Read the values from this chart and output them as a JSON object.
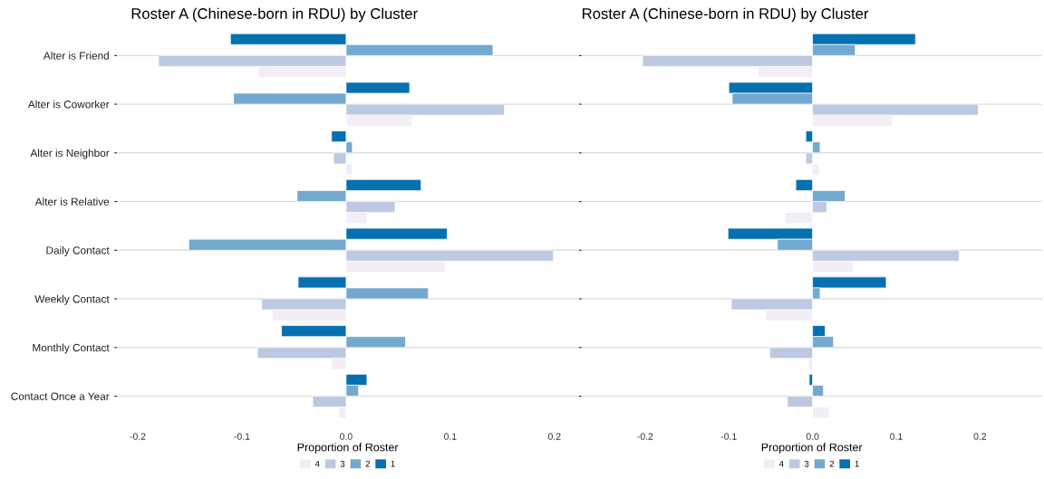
{
  "chart_data": [
    {
      "type": "bar",
      "orientation": "horizontal",
      "title": "Roster A (Chinese-born in RDU) by Cluster",
      "xlabel": "Proportion of Roster",
      "categories": [
        "Alter is Friend",
        "Alter is Coworker",
        "Alter is Neighbor",
        "Alter is Relative",
        "Daily Contact",
        "Weekly Contact",
        "Monthly Contact",
        "Contact Once a Year"
      ],
      "series": [
        {
          "name": "1",
          "color": "#0570b0",
          "values": [
            -0.111,
            0.061,
            -0.014,
            0.072,
            0.097,
            -0.046,
            -0.062,
            0.02
          ]
        },
        {
          "name": "2",
          "color": "#74a9cf",
          "values": [
            0.141,
            -0.108,
            0.006,
            -0.047,
            -0.151,
            0.079,
            0.057,
            0.012
          ]
        },
        {
          "name": "3",
          "color": "#bdc9e1",
          "values": [
            -0.18,
            0.152,
            -0.012,
            0.047,
            0.199,
            -0.081,
            -0.085,
            -0.032
          ]
        },
        {
          "name": "4",
          "color": "#f1eef6",
          "values": [
            -0.084,
            0.063,
            0.006,
            0.02,
            0.095,
            -0.071,
            -0.014,
            -0.007
          ]
        }
      ],
      "xlim": [
        -0.22,
        0.223
      ],
      "xticks": [
        -0.2,
        -0.1,
        {
          "value": 0,
          "label": "0.0"
        },
        0.1,
        0.2
      ],
      "grid": "y",
      "legend": "bottom"
    },
    {
      "type": "bar",
      "orientation": "horizontal",
      "title": "Roster A (Chinese-born in RDU) by Cluster",
      "xlabel": "Proportion of Roster",
      "categories": [
        null,
        null,
        null,
        null,
        null,
        null,
        null,
        null
      ],
      "series": [
        {
          "name": "1",
          "color": "#0570b0",
          "values": [
            0.123,
            -0.1,
            -0.008,
            -0.02,
            -0.101,
            0.088,
            0.015,
            -0.004
          ]
        },
        {
          "name": "2",
          "color": "#74a9cf",
          "values": [
            0.051,
            -0.096,
            0.009,
            0.039,
            -0.042,
            0.009,
            0.025,
            0.013
          ]
        },
        {
          "name": "3",
          "color": "#bdc9e1",
          "values": [
            -0.203,
            0.198,
            -0.008,
            0.017,
            0.175,
            -0.097,
            -0.051,
            -0.03
          ]
        },
        {
          "name": "4",
          "color": "#f1eef6",
          "values": [
            -0.065,
            0.095,
            0.008,
            -0.033,
            0.049,
            -0.056,
            -0.005,
            0.02
          ]
        }
      ],
      "xlim": [
        -0.276,
        0.274
      ],
      "xticks": [
        -0.2,
        -0.1,
        {
          "value": 0,
          "label": "0.0"
        },
        0.1,
        0.2
      ],
      "grid": "y",
      "legend": "bottom",
      "tick_labels": "x"
    }
  ]
}
